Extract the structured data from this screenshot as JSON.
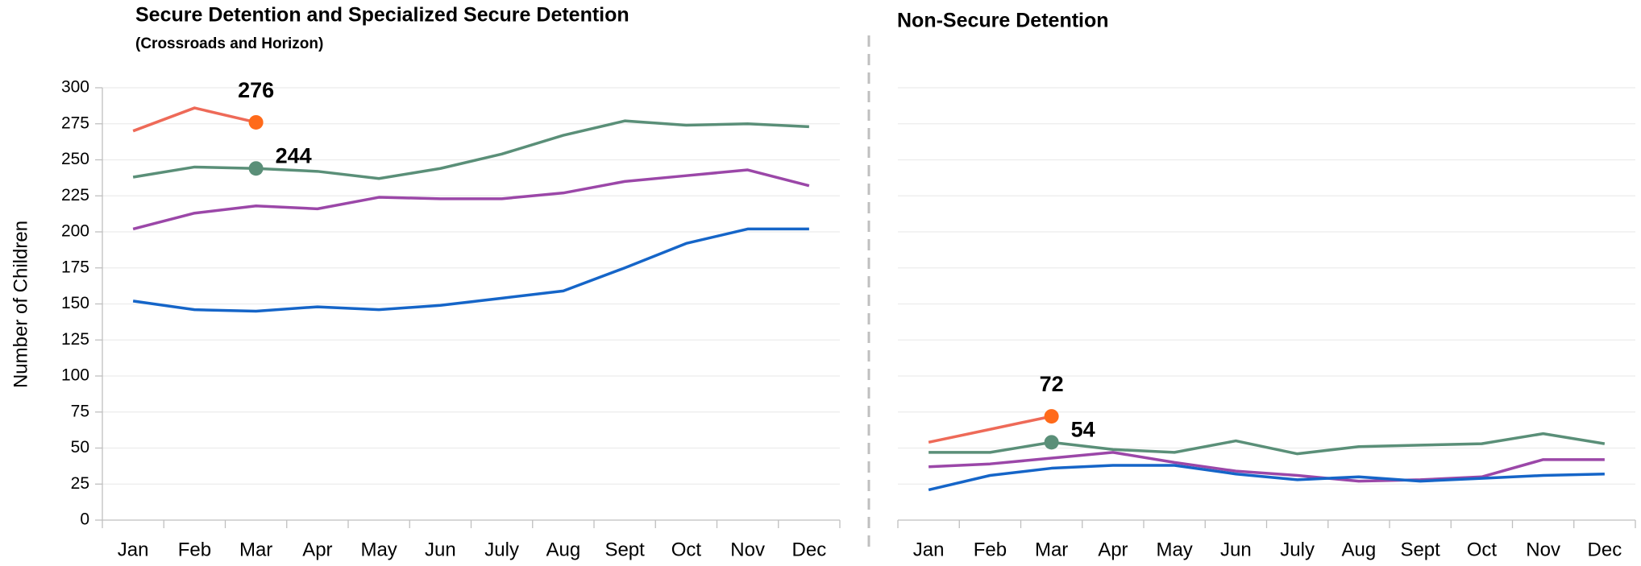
{
  "chart_data": [
    {
      "type": "line",
      "title": "Secure Detention and Specialized Secure Detention",
      "subtitle": "(Crossroads and Horizon)",
      "y_label": "Number of Children",
      "categories": [
        "Jan",
        "Feb",
        "Mar",
        "Apr",
        "May",
        "Jun",
        "July",
        "Aug",
        "Sept",
        "Oct",
        "Nov",
        "Dec"
      ],
      "series": [
        {
          "color": "#ee6a58",
          "values": [
            270,
            286,
            276,
            null,
            null,
            null,
            null,
            null,
            null,
            null,
            null,
            null
          ]
        },
        {
          "color": "#5a8f78",
          "values": [
            238,
            245,
            244,
            242,
            237,
            244,
            254,
            267,
            277,
            274,
            275,
            273
          ]
        },
        {
          "color": "#9b47a8",
          "values": [
            202,
            213,
            218,
            216,
            224,
            223,
            223,
            227,
            235,
            239,
            243,
            232
          ]
        },
        {
          "color": "#1565c8",
          "values": [
            152,
            146,
            145,
            148,
            146,
            149,
            154,
            159,
            175,
            192,
            202,
            202
          ]
        }
      ],
      "ylim": [
        0,
        300
      ],
      "yticks": [
        0,
        25,
        50,
        75,
        100,
        125,
        150,
        175,
        200,
        225,
        250,
        275,
        300
      ],
      "grid": true
    },
    {
      "type": "line",
      "title": "Non-Secure Detention",
      "categories": [
        "Jan",
        "Feb",
        "Mar",
        "Apr",
        "May",
        "Jun",
        "July",
        "Aug",
        "Sept",
        "Oct",
        "Nov",
        "Dec"
      ],
      "series": [
        {
          "color": "#ee6a58",
          "values": [
            54,
            63,
            72,
            null,
            null,
            null,
            null,
            null,
            null,
            null,
            null,
            null
          ]
        },
        {
          "color": "#5a8f78",
          "values": [
            47,
            47,
            54,
            49,
            47,
            55,
            46,
            51,
            52,
            53,
            60,
            53
          ]
        },
        {
          "color": "#9b47a8",
          "values": [
            37,
            39,
            43,
            47,
            40,
            34,
            31,
            27,
            28,
            30,
            42,
            42
          ]
        },
        {
          "color": "#1565c8",
          "values": [
            21,
            31,
            36,
            38,
            38,
            32,
            28,
            30,
            27,
            29,
            31,
            32
          ]
        }
      ],
      "ylim": [
        0,
        300
      ],
      "yticks": [
        0,
        25,
        50,
        75,
        100,
        125,
        150,
        175,
        200,
        225,
        250,
        275,
        300
      ],
      "grid": true
    }
  ]
}
